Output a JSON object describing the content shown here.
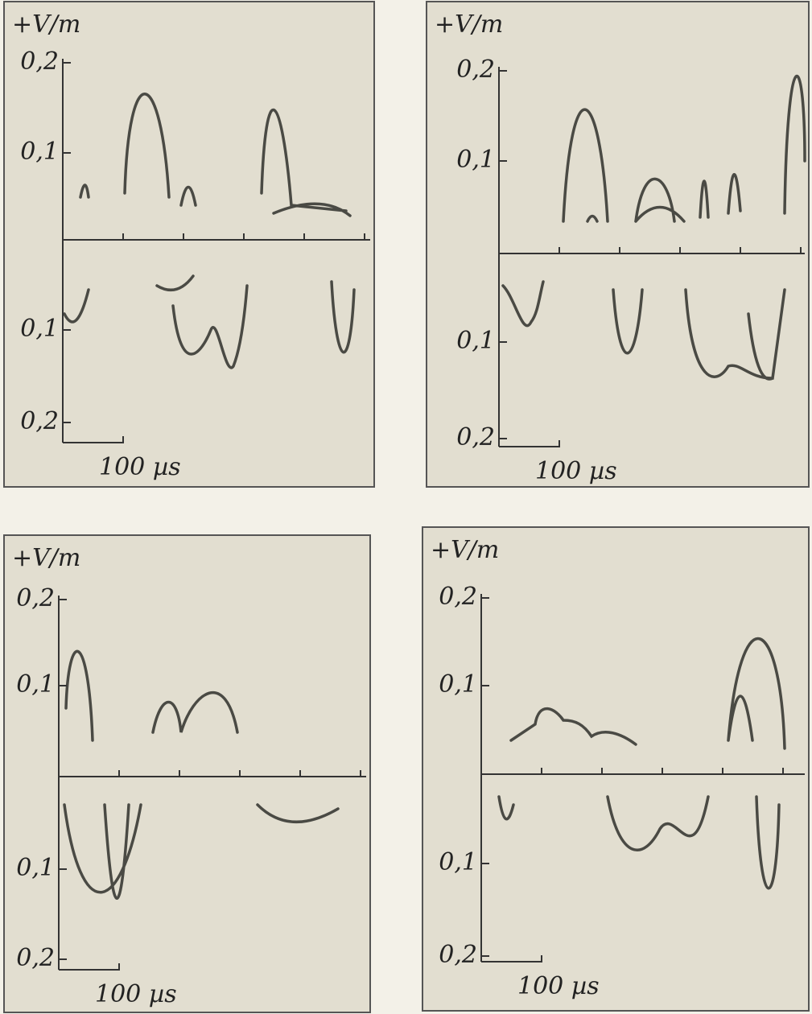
{
  "panels": [
    {
      "unit": "+V/m",
      "upper_ticks": [
        "0,2",
        "0,1"
      ],
      "lower_ticks": [
        "0,1",
        "0,2"
      ],
      "scale_bar": "100 µs"
    },
    {
      "unit": "+V/m",
      "upper_ticks": [
        "0,2",
        "0,1"
      ],
      "lower_ticks": [
        "0,1",
        "0,2"
      ],
      "scale_bar": "100 µs"
    },
    {
      "unit": "+V/m",
      "upper_ticks": [
        "0,2",
        "0,1"
      ],
      "lower_ticks": [
        "0,1",
        "0,2"
      ],
      "scale_bar": "100 µs"
    },
    {
      "unit": "+V/m",
      "upper_ticks": [
        "0,2",
        "0,1"
      ],
      "lower_ticks": [
        "0,1",
        "0,2"
      ],
      "scale_bar": "100 µs"
    }
  ]
}
